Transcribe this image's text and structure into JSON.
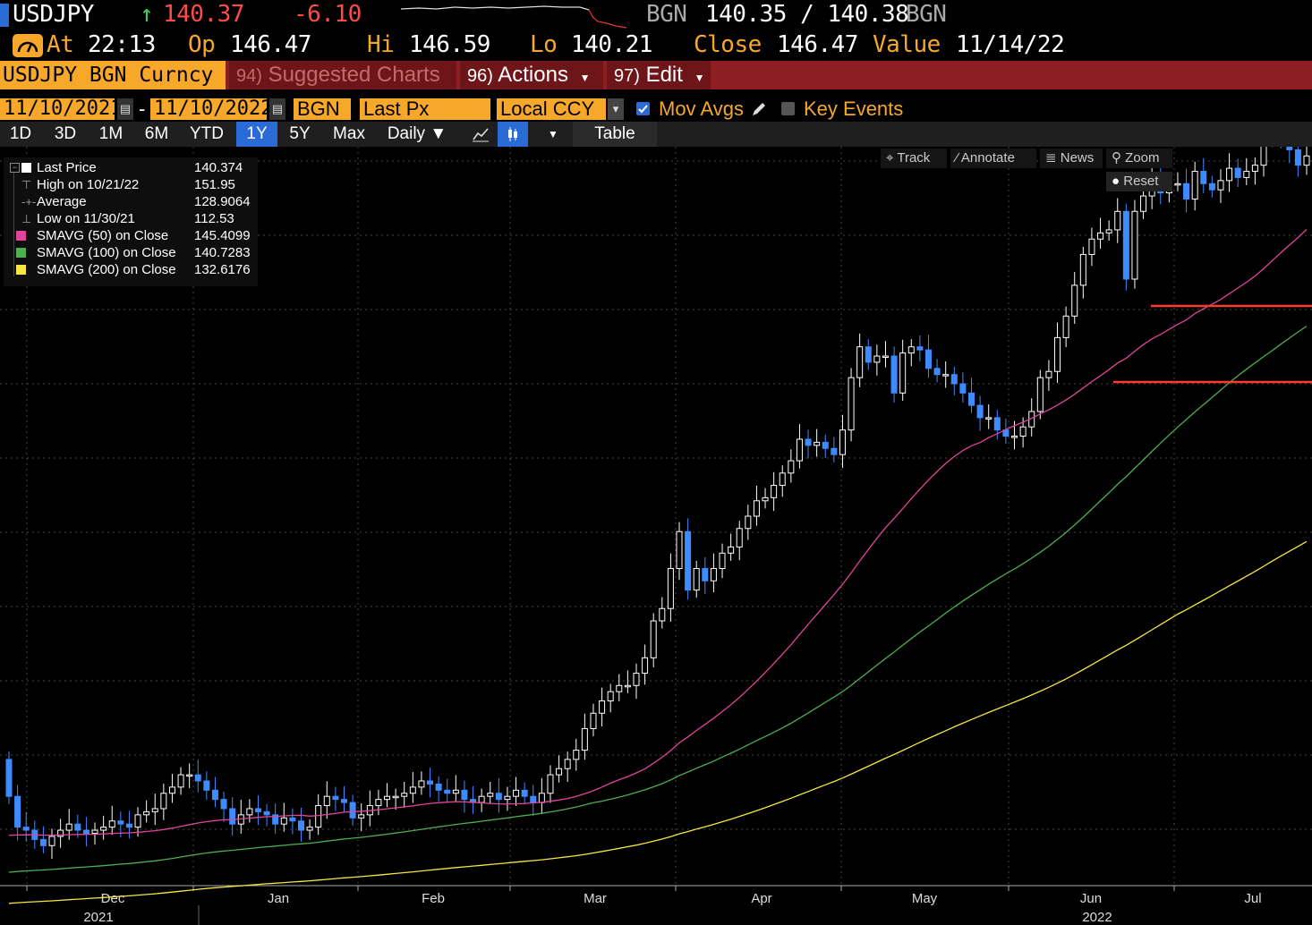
{
  "header": {
    "ticker": "USDJPY",
    "arrow": "↑",
    "last": "140.37",
    "change": "-6.10",
    "bid_source": "BGN",
    "bid_ask": "140.35 / 140.38",
    "ask_source": "BGN",
    "at_label": "At",
    "at_time": "22:13",
    "open_label": "Op",
    "open": "146.47",
    "high_label": "Hi",
    "high": "146.59",
    "low_label": "Lo",
    "low": "140.21",
    "close_label": "Close",
    "close": "146.47",
    "value_label": "Value",
    "value_date": "11/14/22"
  },
  "menu": {
    "security": "USDJPY BGN Curncy",
    "suggested_num": "94)",
    "suggested": "Suggested Charts",
    "actions_num": "96)",
    "actions": "Actions",
    "edit_num": "97)",
    "edit": "Edit"
  },
  "settings": {
    "start_date": "11/10/2021",
    "dash": "-",
    "end_date": "11/10/2022",
    "source": "BGN",
    "field": "Last Px",
    "currency": "Local CCY",
    "mov_avgs": "Mov Avgs",
    "key_events": "Key Events"
  },
  "periods": [
    "1D",
    "3D",
    "1M",
    "6M",
    "YTD",
    "1Y",
    "5Y",
    "Max"
  ],
  "active_period": "1Y",
  "frequency": "Daily ▼",
  "table_label": "Table",
  "tools": {
    "track": "Track",
    "annotate": "Annotate",
    "news": "News",
    "zoom": "Zoom",
    "reset": "Reset"
  },
  "legend": [
    {
      "name": "Last Price",
      "value": "140.374",
      "icon": "square",
      "color": "#ffffff"
    },
    {
      "name": "High on 10/21/22",
      "value": "151.95",
      "icon": "high-marker",
      "color": "#999999"
    },
    {
      "name": "Average",
      "value": "128.9064",
      "icon": "average-marker",
      "color": "#999999"
    },
    {
      "name": "Low on 11/30/21",
      "value": "112.53",
      "icon": "low-marker",
      "color": "#999999"
    },
    {
      "name": "SMAVG (50)  on Close",
      "value": "145.4099",
      "icon": "square",
      "color": "#e0449a"
    },
    {
      "name": "SMAVG (100)  on Close",
      "value": "140.7283",
      "icon": "square",
      "color": "#4caf50"
    },
    {
      "name": "SMAVG (200)  on Close",
      "value": "132.6176",
      "icon": "square",
      "color": "#f5e642"
    }
  ],
  "chart_data": {
    "type": "candlestick",
    "x_labels": [
      "Dec",
      "Jan",
      "Feb",
      "Mar",
      "Apr",
      "May",
      "Jun",
      "Jul"
    ],
    "year_labels": [
      "2021",
      "2022"
    ],
    "y_range": [
      112,
      136
    ],
    "colors": {
      "up": "#ffffff",
      "down": "#3d8bff",
      "sma50": "#e0449a",
      "sma100": "#4caf50",
      "sma200": "#f5e642",
      "high_low_line": "#ff3b30"
    },
    "closes": [
      114.9,
      113.9,
      113.8,
      113.5,
      113.3,
      113.6,
      113.8,
      114.0,
      113.8,
      113.7,
      113.8,
      113.9,
      114.1,
      114.0,
      113.9,
      114.3,
      114.4,
      114.5,
      115.0,
      115.2,
      115.6,
      115.6,
      115.4,
      115.1,
      114.8,
      114.5,
      114.0,
      114.3,
      114.5,
      114.4,
      114.3,
      114.0,
      114.2,
      114.1,
      113.8,
      113.9,
      114.6,
      114.9,
      114.8,
      114.7,
      114.2,
      114.3,
      114.6,
      114.8,
      114.9,
      114.9,
      115.0,
      115.2,
      115.4,
      115.3,
      115.1,
      115.0,
      115.1,
      114.8,
      114.7,
      114.9,
      115.0,
      114.8,
      114.9,
      115.1,
      114.9,
      114.7,
      115.0,
      115.6,
      115.8,
      116.1,
      116.4,
      117.1,
      117.6,
      118.0,
      118.3,
      118.5,
      118.5,
      118.9,
      119.4,
      120.6,
      121.0,
      122.3,
      123.5,
      121.6,
      122.3,
      121.9,
      122.3,
      122.8,
      123.0,
      123.6,
      124.0,
      124.5,
      124.6,
      125.0,
      125.4,
      125.8,
      126.5,
      126.3,
      126.4,
      126.2,
      126.0,
      126.8,
      128.5,
      129.5,
      129.0,
      129.2,
      129.2,
      128.0,
      129.3,
      129.5,
      129.4,
      128.8,
      128.6,
      128.6,
      128.3,
      128.0,
      127.6,
      127.2,
      127.2,
      126.8,
      126.6,
      126.6,
      126.9,
      127.4,
      128.5,
      128.7,
      129.8,
      130.5,
      131.5,
      132.5,
      133.0,
      133.2,
      133.3,
      133.9,
      131.7,
      133.9,
      134.4,
      135.0,
      134.5,
      134.8,
      134.8,
      134.3,
      135.2,
      134.8,
      134.6,
      134.9,
      135.3,
      135.0,
      135.2,
      135.4,
      136.3,
      136.8,
      136.2,
      135.9,
      135.4,
      135.7
    ],
    "sma_note": "moving averages drawn from closes"
  }
}
